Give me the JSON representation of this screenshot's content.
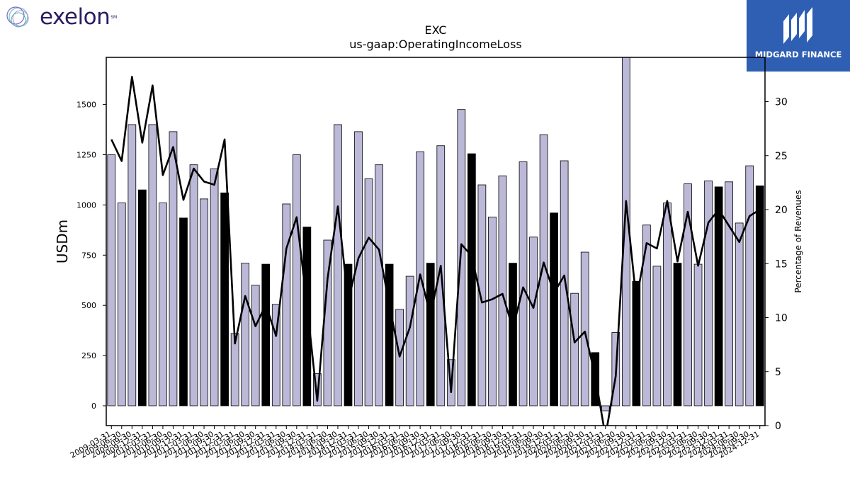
{
  "brand": {
    "company_logo_text": "exelon",
    "company_logo_mark": "SM",
    "partner_logo_text": "MIDGARD FINANCE"
  },
  "chart_data": {
    "type": "bar",
    "title": "EXC",
    "subtitle": "us-gaap:OperatingIncomeLoss",
    "ylabel": "USDm",
    "y2label": "Percentage of Revenues",
    "ylim": [
      -100,
      1750
    ],
    "y2lim": [
      0,
      33.5
    ],
    "yticks": [
      0,
      250,
      500,
      750,
      1000,
      1250,
      1500
    ],
    "y2ticks": [
      0,
      5,
      10,
      15,
      20,
      25,
      30
    ],
    "categories": [
      "2009-03-31",
      "2009-06-30",
      "2009-09-30",
      "2009-12-31",
      "2010-03-31",
      "2010-06-30",
      "2010-09-30",
      "2010-12-31",
      "2011-03-31",
      "2011-06-30",
      "2011-09-30",
      "2011-12-31",
      "2012-03-31",
      "2012-06-30",
      "2012-09-30",
      "2012-12-31",
      "2013-03-31",
      "2013-06-30",
      "2013-09-30",
      "2013-12-31",
      "2014-03-31",
      "2014-06-30",
      "2014-09-30",
      "2014-12-31",
      "2015-03-31",
      "2015-06-30",
      "2015-09-30",
      "2015-12-31",
      "2016-03-31",
      "2016-06-30",
      "2016-09-30",
      "2016-12-31",
      "2017-03-31",
      "2017-06-30",
      "2017-09-30",
      "2017-12-31",
      "2018-03-31",
      "2018-06-30",
      "2018-09-30",
      "2018-12-31",
      "2019-03-31",
      "2019-06-30",
      "2019-09-30",
      "2019-12-31",
      "2020-03-31",
      "2020-06-30",
      "2020-09-30",
      "2020-12-31",
      "2021-03-31",
      "2021-06-30",
      "2021-09-30",
      "2021-12-31",
      "2022-03-31",
      "2022-06-30",
      "2022-09-30",
      "2022-12-31",
      "2023-03-31",
      "2023-06-30",
      "2023-09-30",
      "2023-12-31",
      "2024-03-31",
      "2024-06-30",
      "2024-09-30",
      "2024-12-31"
    ],
    "series": [
      {
        "type": "bar",
        "values": [
          1250,
          1010,
          1400,
          1075,
          1400,
          1010,
          1365,
          935,
          1200,
          1030,
          1180,
          1060,
          360,
          710,
          600,
          705,
          505,
          1005,
          1250,
          890,
          160,
          825,
          1400,
          705,
          1365,
          1130,
          1200,
          705,
          480,
          645,
          1265,
          710,
          1295,
          230,
          1475,
          1255,
          1100,
          940,
          1145,
          710,
          1215,
          840,
          1350,
          960,
          1220,
          560,
          765,
          265,
          -25,
          365,
          1775,
          620,
          900,
          695,
          1010,
          710,
          1105,
          705,
          1120,
          1090,
          1115,
          910,
          1195,
          1095
        ],
        "highlight": [
          false,
          false,
          false,
          true,
          false,
          false,
          false,
          true,
          false,
          false,
          false,
          true,
          false,
          false,
          false,
          true,
          false,
          false,
          false,
          true,
          false,
          false,
          false,
          true,
          false,
          false,
          false,
          true,
          false,
          false,
          false,
          true,
          false,
          false,
          false,
          true,
          false,
          false,
          false,
          true,
          false,
          false,
          false,
          true,
          false,
          false,
          false,
          true,
          false,
          false,
          false,
          true,
          false,
          false,
          false,
          true,
          false,
          false,
          false,
          true,
          false,
          false,
          false,
          true
        ],
        "color": "#bcb8d8",
        "highlight_color": "#000000"
      },
      {
        "type": "line",
        "axis": "right",
        "values": [
          26.5,
          24.5,
          32.3,
          26.2,
          31.5,
          23.2,
          25.8,
          20.9,
          23.8,
          22.6,
          22.3,
          26.5,
          7.6,
          12.0,
          9.2,
          11.2,
          8.3,
          16.4,
          19.3,
          11.2,
          2.3,
          13.6,
          20.3,
          11.5,
          15.5,
          17.4,
          16.3,
          11.2,
          6.4,
          9.1,
          14.0,
          10.2,
          14.8,
          3.1,
          16.8,
          15.7,
          11.4,
          11.7,
          12.2,
          9.0,
          12.8,
          10.9,
          15.1,
          12.3,
          13.9,
          7.7,
          8.7,
          4.6,
          -1.0,
          4.6,
          20.8,
          11.6,
          16.9,
          16.4,
          20.8,
          15.2,
          19.8,
          14.8,
          18.8,
          20.0,
          18.5,
          17.0,
          19.4,
          20.0
        ],
        "color": "#000000"
      }
    ]
  }
}
